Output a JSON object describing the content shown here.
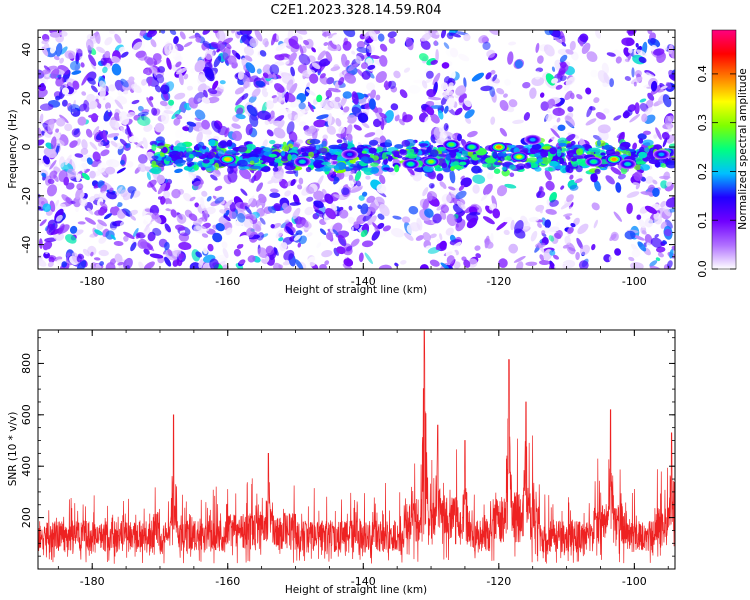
{
  "title": "C2E1.2023.328.14.59.R04",
  "chart_data": [
    {
      "type": "heatmap",
      "xlabel": "Height of straight line (km)",
      "ylabel": "Frequency (Hz)",
      "xlim": [
        -188,
        -94
      ],
      "ylim": [
        -50,
        48
      ],
      "xticks": [
        -180,
        -160,
        -140,
        -120,
        -100
      ],
      "yticks": [
        -40,
        -20,
        0,
        20,
        40
      ],
      "colorbar": {
        "label": "Normalized spectral amplitude",
        "range": [
          0,
          0.49
        ],
        "ticks": [
          0.0,
          0.1,
          0.2,
          0.3,
          0.4
        ],
        "colors": [
          "#ffffff",
          "#b070ff",
          "#7000ff",
          "#2000ff",
          "#00c0ff",
          "#00ff80",
          "#80ff00",
          "#ffff00",
          "#ff8000",
          "#ff0000",
          "#ff0080"
        ]
      },
      "signal_band": {
        "center_hz": -4,
        "halfwidth_hz": 7,
        "x_range": [
          -171,
          -94
        ]
      },
      "hotspots": [
        {
          "x": -160,
          "y": -5,
          "amp": 0.42
        },
        {
          "x": -149,
          "y": -6,
          "amp": 0.25
        },
        {
          "x": -142,
          "y": -3,
          "amp": 0.2
        },
        {
          "x": -133,
          "y": -7,
          "amp": 0.28
        },
        {
          "x": -130,
          "y": -6,
          "amp": 0.35
        },
        {
          "x": -127,
          "y": 1,
          "amp": 0.32
        },
        {
          "x": -124,
          "y": 0,
          "amp": 0.3
        },
        {
          "x": -120,
          "y": 0,
          "amp": 0.45
        },
        {
          "x": -117,
          "y": -4,
          "amp": 0.38
        },
        {
          "x": -115,
          "y": 3,
          "amp": 0.22
        },
        {
          "x": -106,
          "y": -6,
          "amp": 0.28
        },
        {
          "x": -103,
          "y": -5,
          "amp": 0.44
        },
        {
          "x": -101,
          "y": -7,
          "amp": 0.25
        },
        {
          "x": -96,
          "y": -3,
          "amp": 0.22
        }
      ]
    },
    {
      "type": "line",
      "xlabel": "Height of straight line (km)",
      "ylabel": "SNR (10 * v/v)",
      "xlim": [
        -188,
        -94
      ],
      "ylim": [
        0,
        930
      ],
      "xticks": [
        -180,
        -160,
        -140,
        -120,
        -100
      ],
      "yticks": [
        200,
        400,
        600,
        800
      ],
      "color": "#ee2222",
      "baseline": 140,
      "peaks": [
        {
          "x": -168,
          "y": 600
        },
        {
          "x": -154,
          "y": 450
        },
        {
          "x": -131,
          "y": 935
        },
        {
          "x": -129,
          "y": 560
        },
        {
          "x": -125,
          "y": 500
        },
        {
          "x": -118.5,
          "y": 815
        },
        {
          "x": -116,
          "y": 650
        },
        {
          "x": -103.5,
          "y": 620
        },
        {
          "x": -94.5,
          "y": 530
        }
      ]
    }
  ]
}
